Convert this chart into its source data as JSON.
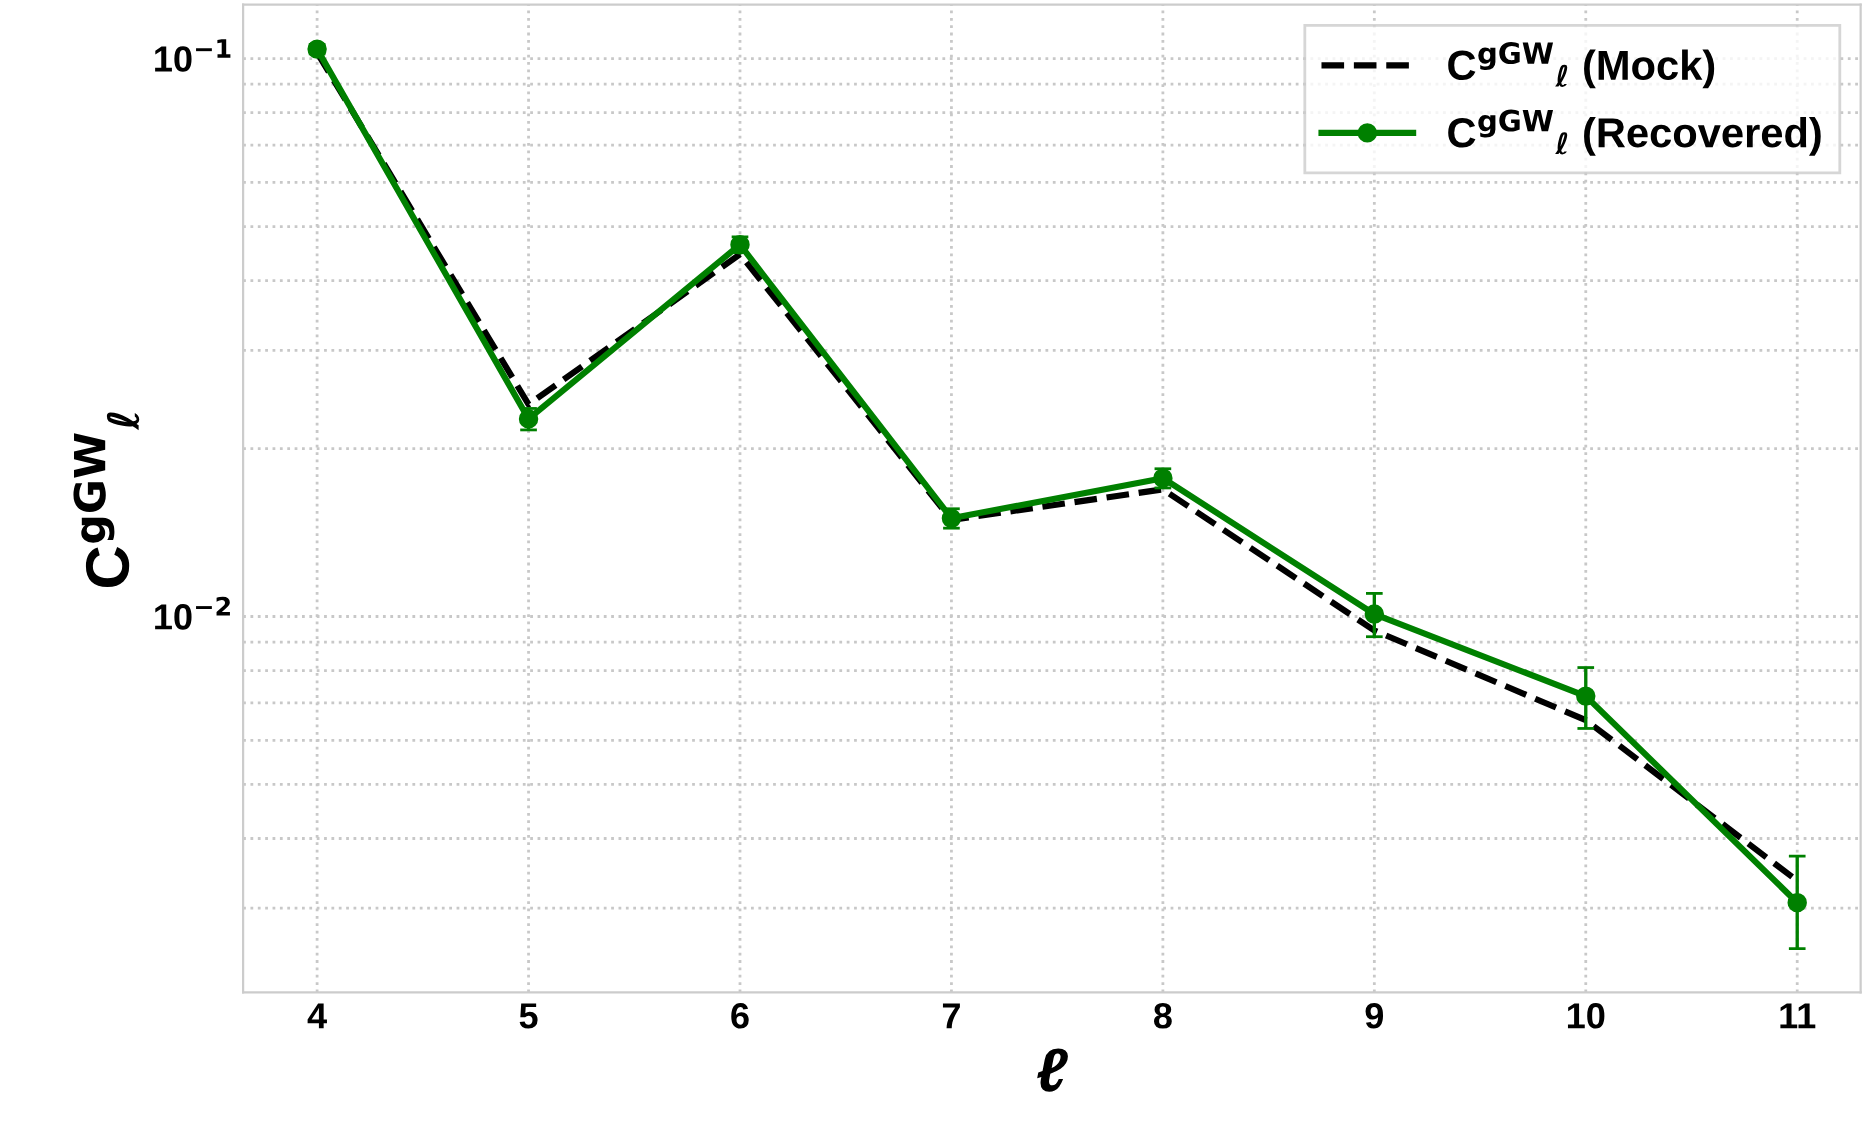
{
  "chart_data": {
    "type": "line",
    "xlabel": "ℓ",
    "ylabel": "C$^{gGW}$$_{ℓ}$",
    "log": "y",
    "grid": true,
    "legend": "top right",
    "x": [
      4,
      5,
      6,
      7,
      8,
      9,
      10,
      11
    ],
    "xlim": [
      3.65,
      11.3
    ],
    "xticks": [
      4,
      5,
      6,
      7,
      8,
      9,
      10,
      11
    ],
    "ylim": [
      0.00212,
      0.125
    ],
    "yticks": [
      {
        "value": 0.01,
        "label": "10$^{−2}$"
      },
      {
        "value": 0.1,
        "label": "10$^{−1}$"
      }
    ],
    "series": [
      {
        "name": "C$^{gGW}$$_{ℓ}$ (Mock)",
        "color": "#000000",
        "line_style": "dashed",
        "marker": "none",
        "values": [
          0.1025,
          0.024,
          0.0446,
          0.0149,
          0.0169,
          0.00944,
          0.00652,
          0.00336
        ]
      },
      {
        "name": "C$^{gGW}$$_{ℓ}$ (Recovered)",
        "color": "#008000",
        "line_style": "solid",
        "marker": "circle",
        "values": [
          0.104,
          0.0226,
          0.0464,
          0.015,
          0.0177,
          0.0101,
          0.0072,
          0.00307
        ],
        "errors": [
          0.002,
          0.001,
          0.0015,
          0.0006,
          0.0007,
          0.0009,
          [
            0.0063,
            0.0081
          ],
          [
            0.00254,
            0.00372
          ]
        ]
      }
    ]
  }
}
